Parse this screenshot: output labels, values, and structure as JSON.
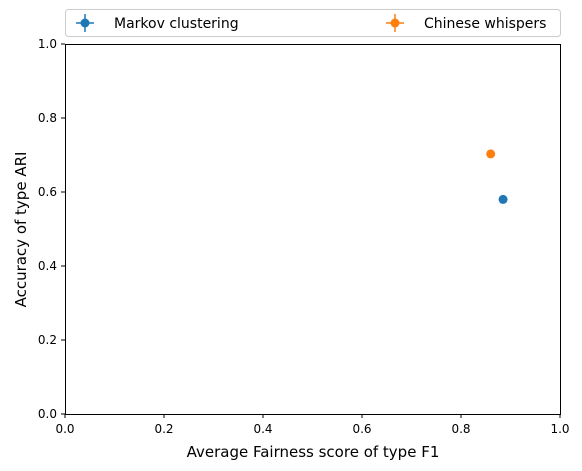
{
  "chart_data": {
    "type": "scatter",
    "xlabel": "Average Fairness score of type F1",
    "ylabel": "Accuracy of type ARI",
    "xlim": [
      0,
      1
    ],
    "ylim": [
      0,
      1
    ],
    "xticks": [
      "0.0",
      "0.2",
      "0.4",
      "0.6",
      "0.8",
      "1.0"
    ],
    "yticks": [
      "0.0",
      "0.2",
      "0.4",
      "0.6",
      "0.8",
      "1.0"
    ],
    "grid": false,
    "legend_placement": "top, above plot, two columns",
    "series": [
      {
        "name": "Markov clustering",
        "color": "#1f77b4",
        "marker": "circle-with-errorbars",
        "x": [
          0.885
        ],
        "y": [
          0.58
        ]
      },
      {
        "name": "Chinese whispers",
        "color": "#ff7f0e",
        "marker": "circle-with-errorbars",
        "x": [
          0.86
        ],
        "y": [
          0.703
        ]
      }
    ]
  }
}
